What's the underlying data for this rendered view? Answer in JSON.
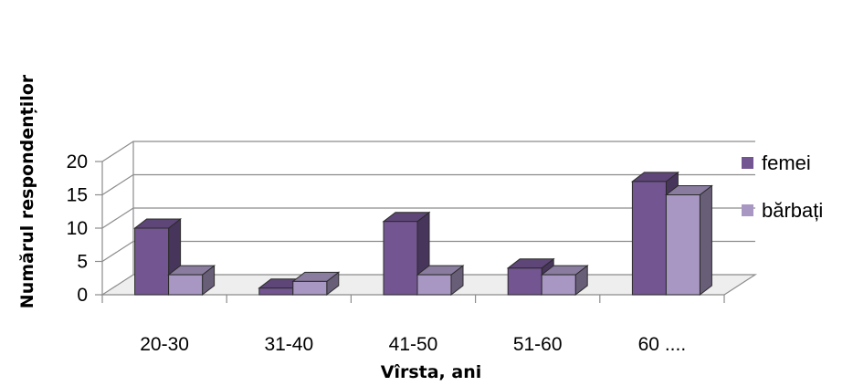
{
  "chart_data": {
    "type": "bar",
    "title": "",
    "xlabel": "Vîrsta, ani",
    "ylabel": "Numărul respondenților",
    "categories": [
      "20-30",
      "31-40",
      "41-50",
      "51-60",
      "60 ...."
    ],
    "series": [
      {
        "name": "femei",
        "values": [
          10,
          1,
          11,
          4,
          17
        ],
        "color": "#735592"
      },
      {
        "name": "bărbați",
        "values": [
          3,
          2,
          3,
          3,
          15
        ],
        "color": "#a797c2"
      }
    ],
    "yticks": [
      0,
      5,
      10,
      15,
      20
    ],
    "ylim": [
      0,
      20
    ],
    "grid": true,
    "legend_position": "right",
    "style": "3d-clustered-column"
  }
}
